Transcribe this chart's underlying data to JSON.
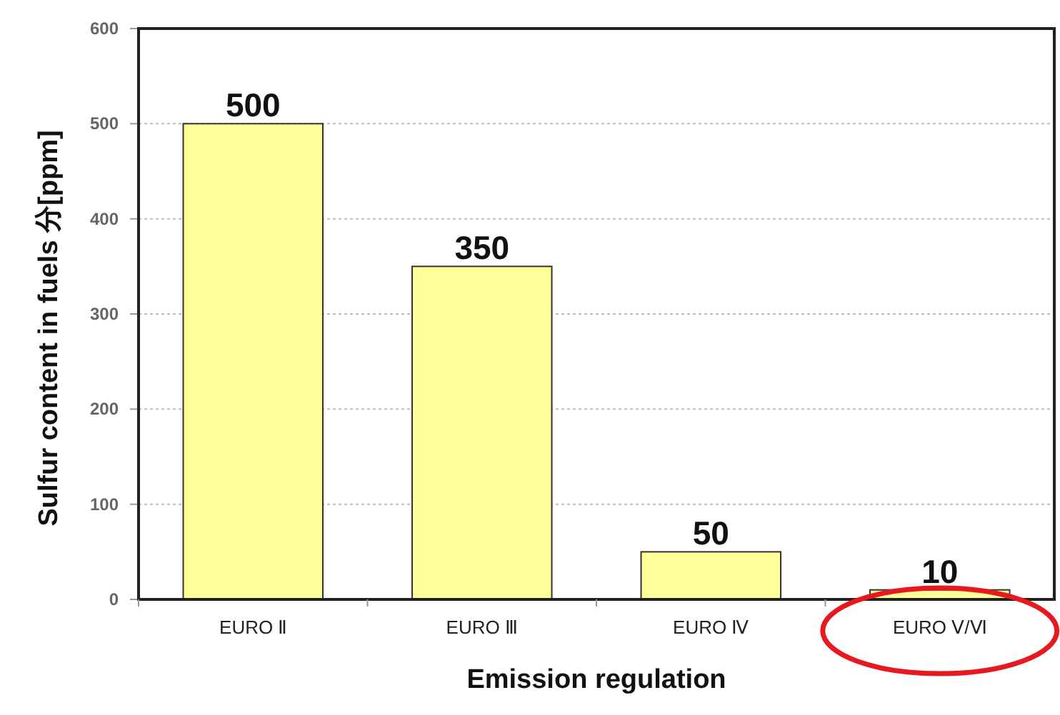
{
  "chart_data": {
    "type": "bar",
    "xlabel": "Emission regulation",
    "ylabel": "Sulfur content in fuels 分[ppm]",
    "categories": [
      "EURO Ⅱ",
      "EURO Ⅲ",
      "EURO Ⅳ",
      "EURO Ⅴ/Ⅵ"
    ],
    "values": [
      500,
      350,
      50,
      10
    ],
    "color": "#ffff99",
    "ylim": [
      0,
      600
    ],
    "yticks": [
      0,
      100,
      200,
      300,
      400,
      500,
      600
    ],
    "grid": "y",
    "data_labels": true
  }
}
